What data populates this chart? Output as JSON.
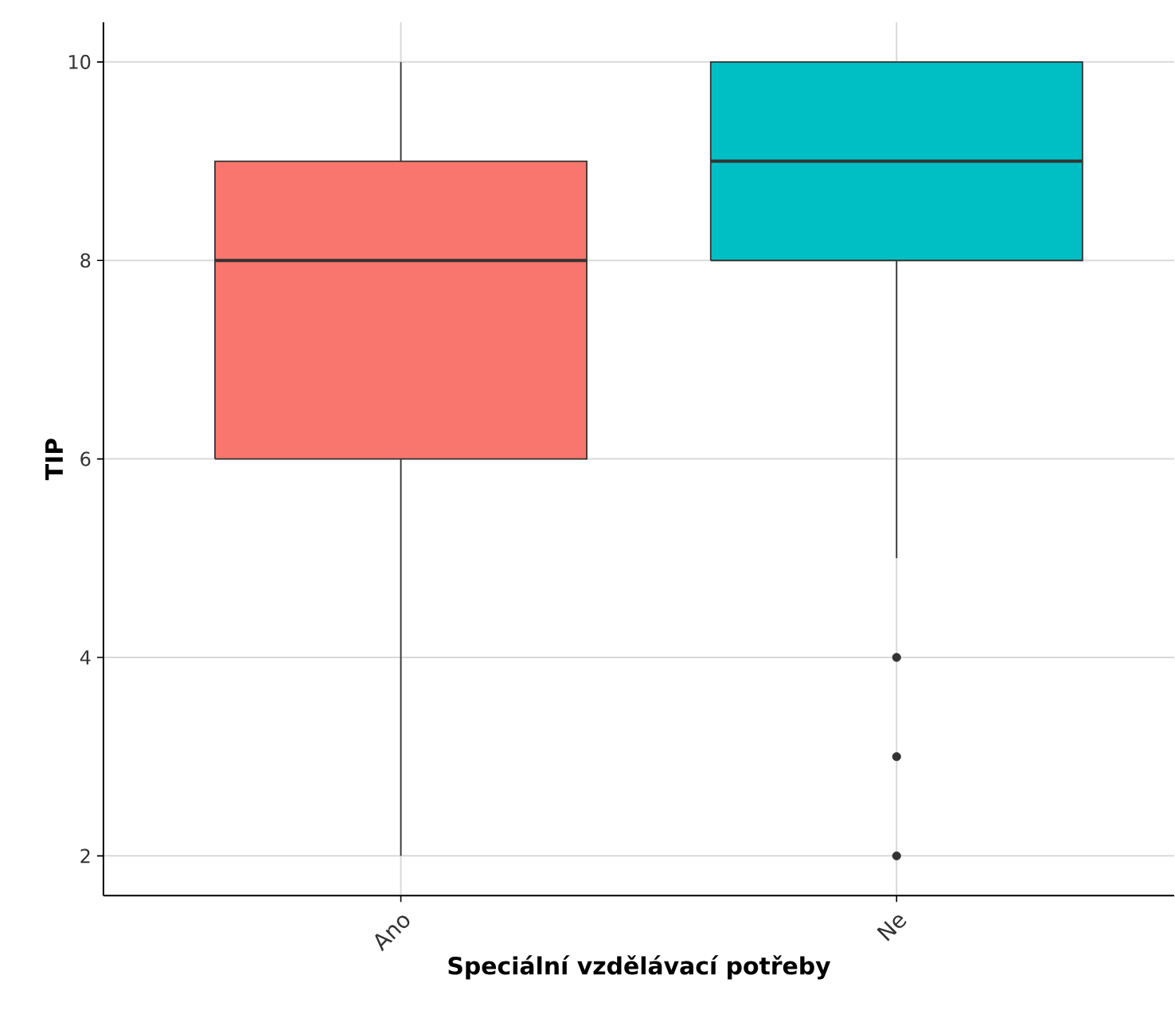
{
  "chart_data": {
    "type": "box",
    "xlabel": "Speciální vzdělávací potřeby",
    "ylabel": "TIP",
    "categories": [
      "Ano",
      "Ne"
    ],
    "colors": [
      "#f8766d",
      "#00bfc4"
    ],
    "boxes": [
      {
        "low": 2,
        "q1": 6,
        "median": 8,
        "q3": 9,
        "high": 10
      },
      {
        "low": 5,
        "q1": 8,
        "median": 9,
        "q3": 10,
        "high": 10,
        "outliers": [
          4,
          3,
          2
        ]
      }
    ],
    "ylim": [
      1.6,
      10.4
    ],
    "yticks": [
      2,
      4,
      6,
      8,
      10
    ],
    "grid": true
  }
}
